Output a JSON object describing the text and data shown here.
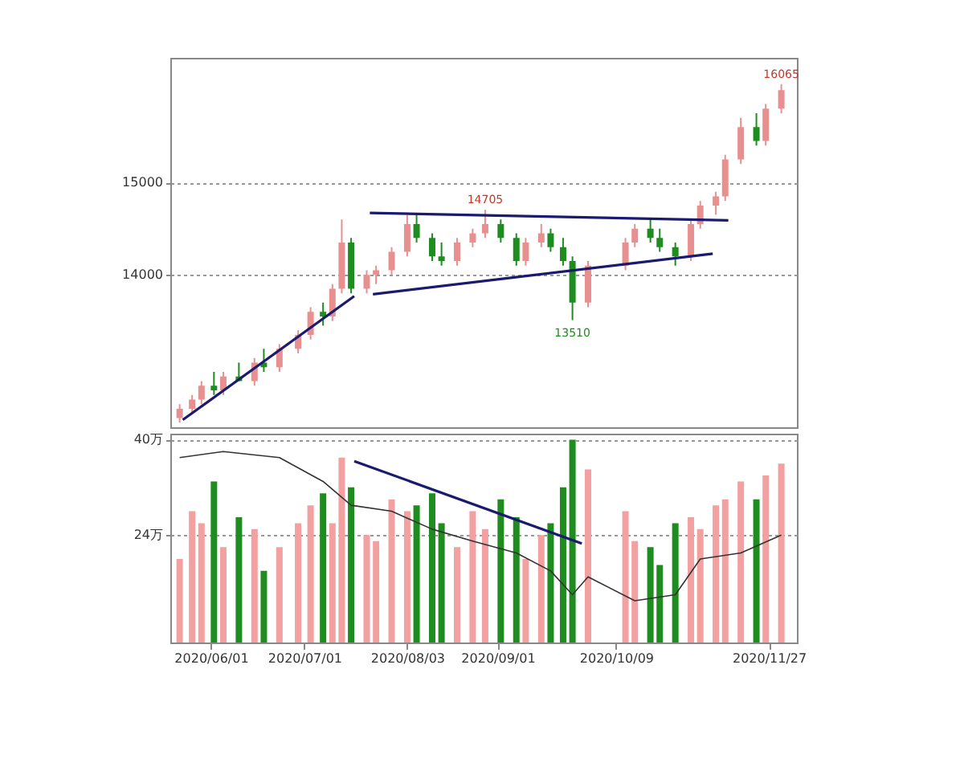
{
  "chart_data": [
    {
      "type": "candlestick",
      "x": [
        "2020-05-22",
        "2020-05-26",
        "2020-05-29",
        "2020-06-02",
        "2020-06-05",
        "2020-06-10",
        "2020-06-15",
        "2020-06-18",
        "2020-06-23",
        "2020-06-29",
        "2020-07-03",
        "2020-07-07",
        "2020-07-10",
        "2020-07-13",
        "2020-07-16",
        "2020-07-21",
        "2020-07-24",
        "2020-07-29",
        "2020-08-03",
        "2020-08-06",
        "2020-08-11",
        "2020-08-14",
        "2020-08-19",
        "2020-08-24",
        "2020-08-28",
        "2020-09-02",
        "2020-09-07",
        "2020-09-10",
        "2020-09-15",
        "2020-09-18",
        "2020-09-22",
        "2020-09-25",
        "2020-09-30",
        "2020-10-12",
        "2020-10-15",
        "2020-10-20",
        "2020-10-23",
        "2020-10-28",
        "2020-11-02",
        "2020-11-05",
        "2020-11-10",
        "2020-11-13",
        "2020-11-18",
        "2020-11-23",
        "2020-11-26",
        "2020-12-01"
      ],
      "ohlc": [
        [
          12450,
          12600,
          12400,
          12550
        ],
        [
          12550,
          12700,
          12500,
          12650
        ],
        [
          12650,
          12850,
          12600,
          12800
        ],
        [
          12800,
          12950,
          12700,
          12750
        ],
        [
          12750,
          12950,
          12700,
          12900
        ],
        [
          12900,
          13050,
          12850,
          12850
        ],
        [
          12850,
          13100,
          12800,
          13050
        ],
        [
          13050,
          13200,
          12950,
          13000
        ],
        [
          13000,
          13250,
          12950,
          13200
        ],
        [
          13200,
          13400,
          13150,
          13350
        ],
        [
          13350,
          13650,
          13300,
          13600
        ],
        [
          13600,
          13700,
          13450,
          13550
        ],
        [
          13550,
          13900,
          13500,
          13850
        ],
        [
          13850,
          14600,
          13800,
          14350
        ],
        [
          14350,
          14400,
          13800,
          13850
        ],
        [
          13850,
          14050,
          13800,
          14000
        ],
        [
          14000,
          14100,
          13900,
          14050
        ],
        [
          14050,
          14300,
          14000,
          14250
        ],
        [
          14250,
          14650,
          14200,
          14550
        ],
        [
          14550,
          14650,
          14350,
          14400
        ],
        [
          14400,
          14450,
          14150,
          14200
        ],
        [
          14200,
          14350,
          14100,
          14150
        ],
        [
          14150,
          14400,
          14100,
          14350
        ],
        [
          14350,
          14500,
          14300,
          14450
        ],
        [
          14450,
          14705,
          14400,
          14550
        ],
        [
          14550,
          14600,
          14350,
          14400
        ],
        [
          14400,
          14450,
          14100,
          14150
        ],
        [
          14150,
          14400,
          14100,
          14350
        ],
        [
          14350,
          14550,
          14300,
          14450
        ],
        [
          14450,
          14500,
          14250,
          14300
        ],
        [
          14300,
          14400,
          14100,
          14150
        ],
        [
          14150,
          14200,
          13510,
          13700
        ],
        [
          13700,
          14150,
          13650,
          14100
        ],
        [
          14100,
          14400,
          14050,
          14350
        ],
        [
          14350,
          14550,
          14300,
          14500
        ],
        [
          14500,
          14600,
          14350,
          14400
        ],
        [
          14400,
          14500,
          14250,
          14300
        ],
        [
          14300,
          14350,
          14100,
          14200
        ],
        [
          14200,
          14600,
          14150,
          14550
        ],
        [
          14550,
          14800,
          14500,
          14750
        ],
        [
          14750,
          14900,
          14650,
          14850
        ],
        [
          14850,
          15300,
          14800,
          15250
        ],
        [
          15250,
          15700,
          15200,
          15600
        ],
        [
          15600,
          15750,
          15400,
          15450
        ],
        [
          15450,
          15850,
          15400,
          15800
        ],
        [
          15800,
          16065,
          15750,
          16000
        ]
      ],
      "colors": [
        "#e89090",
        "#e89090",
        "#e89090",
        "#1e8c1e",
        "#e89090",
        "#1e8c1e",
        "#e89090",
        "#1e8c1e",
        "#e89090",
        "#e89090",
        "#e89090",
        "#1e8c1e",
        "#e89090",
        "#e89090",
        "#1e8c1e",
        "#e89090",
        "#e89090",
        "#e89090",
        "#e89090",
        "#1e8c1e",
        "#1e8c1e",
        "#1e8c1e",
        "#e89090",
        "#e89090",
        "#e89090",
        "#1e8c1e",
        "#1e8c1e",
        "#e89090",
        "#e89090",
        "#1e8c1e",
        "#1e8c1e",
        "#1e8c1e",
        "#e89090",
        "#e89090",
        "#e89090",
        "#1e8c1e",
        "#1e8c1e",
        "#1e8c1e",
        "#e89090",
        "#e89090",
        "#e89090",
        "#e89090",
        "#e89090",
        "#1e8c1e",
        "#e89090",
        "#e89090"
      ],
      "series": [
        {
          "type": "line",
          "color": "#1a1a6e",
          "x": [
            "2020-05-23",
            "2020-07-17"
          ],
          "values": [
            12430,
            13770
          ]
        },
        {
          "type": "line",
          "color": "#1a1a6e",
          "x": [
            "2020-07-22",
            "2020-11-14"
          ],
          "values": [
            14670,
            14590
          ]
        },
        {
          "type": "line",
          "color": "#1a1a6e",
          "x": [
            "2020-07-23",
            "2020-11-09"
          ],
          "values": [
            13790,
            14230
          ]
        }
      ],
      "annotations": [
        {
          "text": "14705",
          "x": "2020-08-28",
          "y": 14705
        },
        {
          "text": "13510",
          "x": "2020-09-25",
          "y": 13510
        },
        {
          "text": "16065",
          "x": "2020-12-01",
          "y": 16065
        }
      ],
      "xlim": [
        "2020-05-19",
        "2020-12-06"
      ],
      "ylim": [
        12350,
        16350
      ],
      "yticks": [
        14000,
        15000
      ],
      "grid": "y",
      "tick_labels": "y"
    },
    {
      "type": "bar",
      "x": [
        "2020-05-22",
        "2020-05-26",
        "2020-05-29",
        "2020-06-02",
        "2020-06-05",
        "2020-06-10",
        "2020-06-15",
        "2020-06-18",
        "2020-06-23",
        "2020-06-29",
        "2020-07-03",
        "2020-07-07",
        "2020-07-10",
        "2020-07-13",
        "2020-07-16",
        "2020-07-21",
        "2020-07-24",
        "2020-07-29",
        "2020-08-03",
        "2020-08-06",
        "2020-08-11",
        "2020-08-14",
        "2020-08-19",
        "2020-08-24",
        "2020-08-28",
        "2020-09-02",
        "2020-09-07",
        "2020-09-10",
        "2020-09-15",
        "2020-09-18",
        "2020-09-22",
        "2020-09-25",
        "2020-09-30",
        "2020-10-12",
        "2020-10-15",
        "2020-10-20",
        "2020-10-23",
        "2020-10-28",
        "2020-11-02",
        "2020-11-05",
        "2020-11-10",
        "2020-11-13",
        "2020-11-18",
        "2020-11-23",
        "2020-11-26",
        "2020-12-01"
      ],
      "series": [
        {
          "type": "bar",
          "values": [
            20,
            28,
            26,
            33,
            22,
            27,
            25,
            18,
            22,
            26,
            29,
            31,
            26,
            37,
            32,
            24,
            23,
            30,
            28,
            29,
            31,
            26,
            22,
            28,
            25,
            30,
            27,
            20,
            24,
            26,
            32,
            40,
            35,
            28,
            23,
            22,
            19,
            26,
            27,
            25,
            29,
            30,
            33,
            30,
            34,
            36
          ],
          "colors": [
            "#f2a0a0",
            "#f2a0a0",
            "#f2a0a0",
            "#1e8c1e",
            "#f2a0a0",
            "#1e8c1e",
            "#f2a0a0",
            "#1e8c1e",
            "#f2a0a0",
            "#f2a0a0",
            "#f2a0a0",
            "#1e8c1e",
            "#f2a0a0",
            "#f2a0a0",
            "#1e8c1e",
            "#f2a0a0",
            "#f2a0a0",
            "#f2a0a0",
            "#f2a0a0",
            "#1e8c1e",
            "#1e8c1e",
            "#1e8c1e",
            "#f2a0a0",
            "#f2a0a0",
            "#f2a0a0",
            "#1e8c1e",
            "#1e8c1e",
            "#f2a0a0",
            "#f2a0a0",
            "#1e8c1e",
            "#1e8c1e",
            "#1e8c1e",
            "#f2a0a0",
            "#f2a0a0",
            "#f2a0a0",
            "#1e8c1e",
            "#1e8c1e",
            "#1e8c1e",
            "#f2a0a0",
            "#f2a0a0",
            "#f2a0a0",
            "#f2a0a0",
            "#f2a0a0",
            "#1e8c1e",
            "#f2a0a0",
            "#f2a0a0"
          ]
        },
        {
          "type": "line",
          "color": "#333333",
          "x": [
            "2020-05-22",
            "2020-06-05",
            "2020-06-23",
            "2020-07-07",
            "2020-07-16",
            "2020-07-29",
            "2020-08-11",
            "2020-08-24",
            "2020-09-07",
            "2020-09-18",
            "2020-09-25",
            "2020-09-30",
            "2020-10-15",
            "2020-10-28",
            "2020-11-05",
            "2020-11-18",
            "2020-12-01"
          ],
          "values": [
            37,
            38,
            37,
            33,
            29,
            28,
            25,
            23,
            21,
            18,
            14,
            17,
            13,
            14,
            20,
            21,
            24
          ]
        },
        {
          "type": "line",
          "color": "#1a1a6e",
          "x": [
            "2020-07-17",
            "2020-09-28"
          ],
          "values": [
            36.4,
            22.6
          ]
        }
      ],
      "xlim": [
        "2020-05-19",
        "2020-12-06"
      ],
      "xticks": [
        {
          "value": "2020-06-01",
          "label": "2020/06/01"
        },
        {
          "value": "2020-07-01",
          "label": "2020/07/01"
        },
        {
          "value": "2020-08-03",
          "label": "2020/08/03"
        },
        {
          "value": "2020-09-01",
          "label": "2020/09/01"
        },
        {
          "value": "2020-10-09",
          "label": "2020/10/09"
        },
        {
          "value": "2020-11-27",
          "label": "2020/11/27"
        }
      ],
      "ylim": [
        6,
        41
      ],
      "yticks": [
        {
          "value": 40,
          "label": "40万"
        },
        {
          "value": 24,
          "label": "24万"
        }
      ],
      "grid": "y"
    }
  ]
}
